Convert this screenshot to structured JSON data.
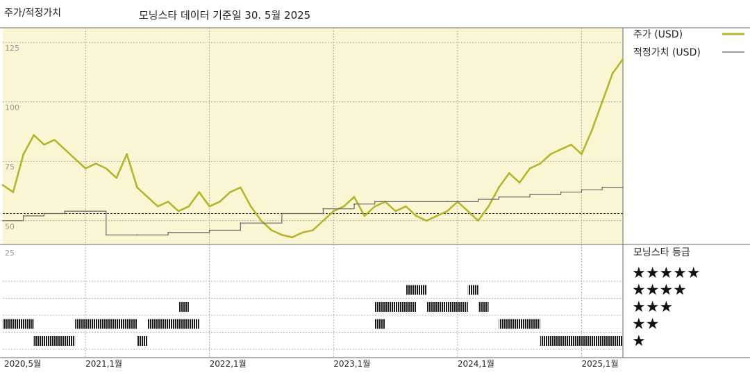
{
  "header": {
    "title": "주가/적정가치",
    "subtitle": "모닝스타 데이터 기준일 30. 5월 2025"
  },
  "colors": {
    "price": "#b5b52a",
    "fair_value": "#666666",
    "plot_bg": "#faf6d4",
    "grid": "#9a9a9a",
    "rating_bar": "#1a1a1a"
  },
  "legend": {
    "price_label": "주가 (USD)",
    "fair_label": "적정가치 (USD)",
    "rating_title": "모닝스타 등급"
  },
  "rating_stars": [
    "★★★★★",
    "★★★★",
    "★★★",
    "★★",
    "★"
  ],
  "x_ticks": [
    "2020,5월",
    "2021,1월",
    "2022,1월",
    "2023,1월",
    "2024,1월",
    "2025,1월"
  ],
  "y_ticks": [
    "125",
    "100",
    "75",
    "50"
  ],
  "rating_y_tick": "25",
  "chart_data": [
    {
      "type": "line",
      "title": "주가/적정가치",
      "x_unit": "date",
      "x_range": [
        "2020-05",
        "2025-05"
      ],
      "ylim": [
        40,
        130
      ],
      "y_ticks": [
        50,
        75,
        100,
        125
      ],
      "grid": true,
      "legend_position": "right",
      "reference_line": 53,
      "series": [
        {
          "name": "주가 (USD)",
          "x": [
            "2020-05",
            "2020-06",
            "2020-07",
            "2020-08",
            "2020-09",
            "2020-10",
            "2020-11",
            "2020-12",
            "2021-01",
            "2021-02",
            "2021-03",
            "2021-04",
            "2021-05",
            "2021-06",
            "2021-07",
            "2021-08",
            "2021-09",
            "2021-10",
            "2021-11",
            "2021-12",
            "2022-01",
            "2022-02",
            "2022-03",
            "2022-04",
            "2022-05",
            "2022-06",
            "2022-07",
            "2022-08",
            "2022-09",
            "2022-10",
            "2022-11",
            "2022-12",
            "2023-01",
            "2023-02",
            "2023-03",
            "2023-04",
            "2023-05",
            "2023-06",
            "2023-07",
            "2023-08",
            "2023-09",
            "2023-10",
            "2023-11",
            "2023-12",
            "2024-01",
            "2024-02",
            "2024-03",
            "2024-04",
            "2024-05",
            "2024-06",
            "2024-07",
            "2024-08",
            "2024-09",
            "2024-10",
            "2024-11",
            "2024-12",
            "2025-01",
            "2025-02",
            "2025-03",
            "2025-04",
            "2025-05"
          ],
          "values": [
            65,
            62,
            78,
            86,
            82,
            84,
            80,
            76,
            72,
            74,
            72,
            68,
            78,
            64,
            60,
            56,
            58,
            54,
            56,
            62,
            56,
            58,
            62,
            64,
            56,
            50,
            46,
            44,
            43,
            45,
            46,
            50,
            54,
            56,
            60,
            52,
            56,
            58,
            54,
            56,
            52,
            50,
            52,
            54,
            58,
            54,
            50,
            56,
            64,
            70,
            66,
            72,
            74,
            78,
            80,
            82,
            78,
            88,
            100,
            112,
            118
          ]
        },
        {
          "name": "적정가치 (USD)",
          "x": [
            "2020-05",
            "2020-07",
            "2020-09",
            "2020-11",
            "2021-01",
            "2021-03",
            "2021-06",
            "2021-09",
            "2022-01",
            "2022-04",
            "2022-08",
            "2022-12",
            "2023-03",
            "2023-05",
            "2023-08",
            "2023-12",
            "2024-01",
            "2024-03",
            "2024-05",
            "2024-08",
            "2024-11",
            "2025-01",
            "2025-03",
            "2025-05"
          ],
          "values": [
            50,
            52,
            53,
            54,
            54,
            44,
            44,
            45,
            46,
            49,
            53,
            55,
            57,
            58,
            58,
            58,
            58,
            59,
            60,
            61,
            62,
            63,
            64,
            64
          ]
        }
      ]
    },
    {
      "type": "heatmap",
      "title": "모닝스타 등급",
      "x_range": [
        "2020-05",
        "2025-05"
      ],
      "levels": [
        "★★★★★",
        "★★★★",
        "★★★",
        "★★",
        "★"
      ],
      "segments": [
        {
          "stars": 2,
          "start": "2020-05",
          "end": "2020-08"
        },
        {
          "stars": 1,
          "start": "2020-08",
          "end": "2020-12"
        },
        {
          "stars": 2,
          "start": "2020-12",
          "end": "2021-06"
        },
        {
          "stars": 1,
          "start": "2021-06",
          "end": "2021-07"
        },
        {
          "stars": 2,
          "start": "2021-07",
          "end": "2021-11"
        },
        {
          "stars": 3,
          "start": "2021-10",
          "end": "2021-11"
        },
        {
          "stars": 2,
          "start": "2021-11",
          "end": "2021-12"
        },
        {
          "stars": 3,
          "start": "2023-05",
          "end": "2023-06"
        },
        {
          "stars": 2,
          "start": "2023-05",
          "end": "2023-06"
        },
        {
          "stars": 3,
          "start": "2023-06",
          "end": "2023-09"
        },
        {
          "stars": 4,
          "start": "2023-08",
          "end": "2023-10"
        },
        {
          "stars": 3,
          "start": "2023-10",
          "end": "2023-11"
        },
        {
          "stars": 3,
          "start": "2023-11",
          "end": "2024-02"
        },
        {
          "stars": 4,
          "start": "2024-02",
          "end": "2024-03"
        },
        {
          "stars": 3,
          "start": "2024-03",
          "end": "2024-04"
        },
        {
          "stars": 2,
          "start": "2024-05",
          "end": "2024-09"
        },
        {
          "stars": 1,
          "start": "2024-09",
          "end": "2025-05"
        }
      ]
    }
  ]
}
